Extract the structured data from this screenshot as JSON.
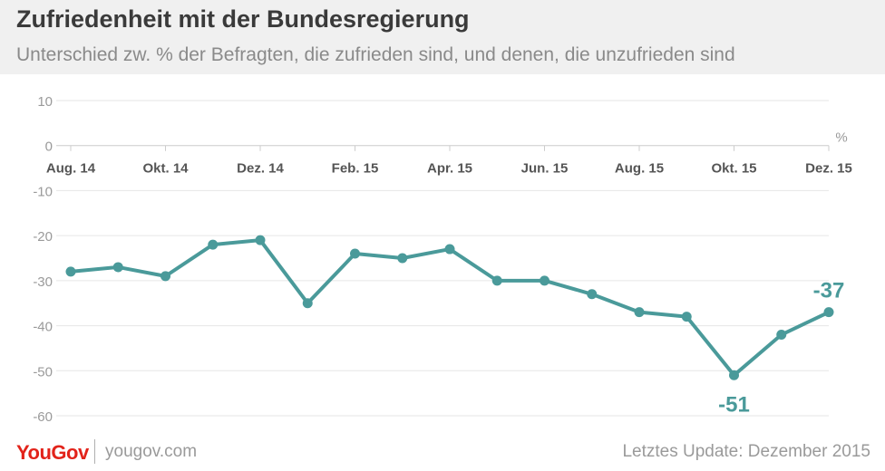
{
  "header": {
    "title": "Zufriedenheit mit der Bundesregierung",
    "subtitle": "Unterschied zw. % der Befragten, die zufrieden sind, und denen, die unzufrieden sind"
  },
  "footer": {
    "logo": "YouGov",
    "url": "yougov.com",
    "update": "Letztes Update: Dezember 2015"
  },
  "colors": {
    "line": "#4a9a9a",
    "grid": "#e6e6e6",
    "axis": "#cccccc",
    "tick_text": "#9a9a9a",
    "month_text": "#555555",
    "logo": "#e2231a"
  },
  "chart_data": {
    "type": "line",
    "title": "Zufriedenheit mit der Bundesregierung",
    "subtitle": "Unterschied zw. % der Befragten, die zufrieden sind, und denen, die unzufrieden sind",
    "unit": "%",
    "xlabel": "",
    "ylabel": "",
    "ylim": [
      -60,
      10
    ],
    "yticks": [
      10,
      0,
      -10,
      -20,
      -30,
      -40,
      -50,
      -60
    ],
    "grid": true,
    "x_tick_labels": [
      "Aug. 14",
      "Okt. 14",
      "Dez. 14",
      "Feb. 15",
      "Apr. 15",
      "Jun. 15",
      "Aug. 15",
      "Okt. 15",
      "Dez. 15"
    ],
    "x_tick_dates": [
      "2014-08",
      "2014-10",
      "2014-12",
      "2015-02",
      "2015-04",
      "2015-06",
      "2015-08",
      "2015-10",
      "2015-12"
    ],
    "series": [
      {
        "points": [
          {
            "x": "2014-08",
            "y": -28
          },
          {
            "x": "2014-09",
            "y": -27
          },
          {
            "x": "2014-10",
            "y": -29
          },
          {
            "x": "2014-11",
            "y": -22
          },
          {
            "x": "2014-12",
            "y": -21
          },
          {
            "x": "2015-01",
            "y": -35
          },
          {
            "x": "2015-02",
            "y": -24
          },
          {
            "x": "2015-03",
            "y": -25
          },
          {
            "x": "2015-04",
            "y": -23
          },
          {
            "x": "2015-05",
            "y": -30
          },
          {
            "x": "2015-06",
            "y": -30
          },
          {
            "x": "2015-07",
            "y": -33
          },
          {
            "x": "2015-08",
            "y": -37
          },
          {
            "x": "2015-09",
            "y": -38
          },
          {
            "x": "2015-10",
            "y": -51
          },
          {
            "x": "2015-11",
            "y": -42
          },
          {
            "x": "2015-12",
            "y": -37
          }
        ]
      }
    ],
    "annotations": [
      {
        "x": "2015-10",
        "y": -51,
        "text": "-51",
        "position": "below"
      },
      {
        "x": "2015-12",
        "y": -37,
        "text": "-37",
        "position": "above"
      }
    ]
  }
}
